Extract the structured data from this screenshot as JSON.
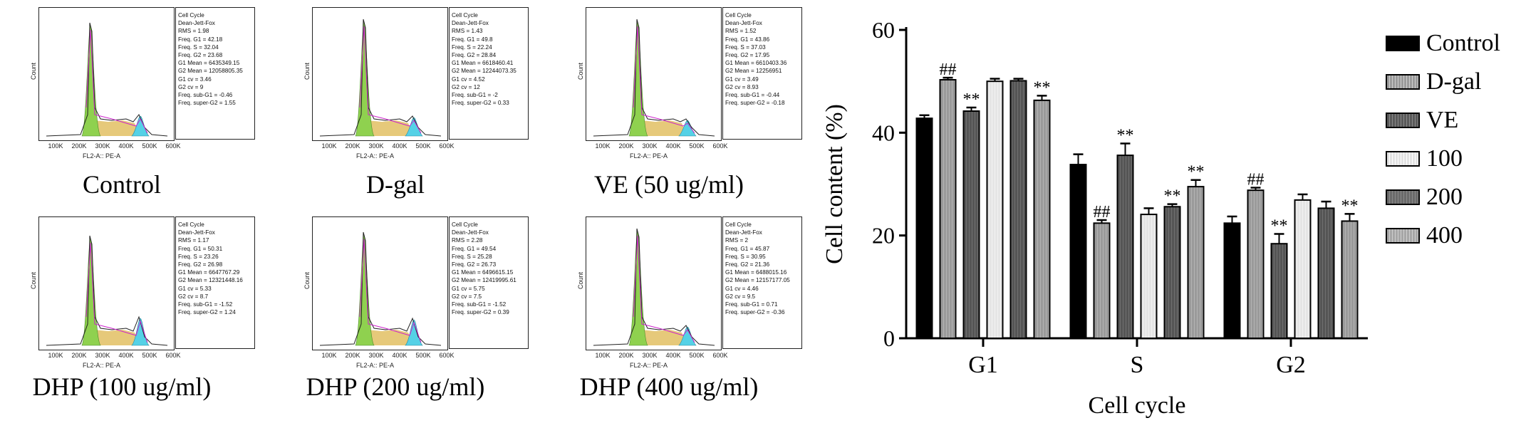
{
  "panels": [
    {
      "label": "Control",
      "stats": [
        "Cell Cycle",
        "Dean-Jett-Fox",
        "RMS = 1.98",
        "Freq. G1 = 42.18",
        "Freq. S = 32.04",
        "Freq. G2 = 23.68",
        "G1 Mean = 6435349.15",
        "G2 Mean = 12058805.35",
        "G1 cv = 3.46",
        "G2 cv = 9",
        "Freq. sub-G1 = -0.46",
        "Freq. super-G2 = 1.55"
      ]
    },
    {
      "label": "D-gal",
      "stats": [
        "Cell Cycle",
        "Dean-Jett-Fox",
        "RMS = 1.43",
        "Freq. G1 = 49.8",
        "Freq. S = 22.24",
        "Freq. G2 = 28.84",
        "G1 Mean = 6618460.41",
        "G2 Mean = 12244073.35",
        "G1 cv = 4.52",
        "G2 cv = 12",
        "Freq. sub-G1 = -2",
        "Freq. super-G2 = 0.33"
      ]
    },
    {
      "label": "VE (50 ug/ml)",
      "stats": [
        "Cell Cycle",
        "Dean-Jett-Fox",
        "RMS = 1.52",
        "Freq. G1 = 43.86",
        "Freq. S = 37.03",
        "Freq. G2 = 17.95",
        "G1 Mean = 6610403.36",
        "G2 Mean = 12256951",
        "G1 cv = 3.49",
        "G2 cv = 8.93",
        "Freq. sub-G1 = -0.44",
        "Freq. super-G2 = -0.18"
      ]
    },
    {
      "label": "DHP (100 ug/ml)",
      "stats": [
        "Cell Cycle",
        "Dean-Jett-Fox",
        "RMS = 1.17",
        "Freq. G1 = 50.31",
        "Freq. S = 23.26",
        "Freq. G2 = 26.98",
        "G1 Mean = 6647767.29",
        "G2 Mean = 12321448.16",
        "G1 cv = 5.33",
        "G2 cv = 8.7",
        "Freq. sub-G1 = -1.52",
        "Freq. super-G2 = 1.24"
      ]
    },
    {
      "label": "DHP (200 ug/ml)",
      "stats": [
        "Cell Cycle",
        "Dean-Jett-Fox",
        "RMS = 2.28",
        "Freq. G1 = 49.54",
        "Freq. S = 25.28",
        "Freq. G2 = 26.73",
        "G1 Mean = 6496615.15",
        "G2 Mean = 12419995.61",
        "G1 cv = 5.75",
        "G2 cv = 7.5",
        "Freq. sub-G1 = -1.52",
        "Freq. super-G2 = 0.39"
      ]
    },
    {
      "label": "DHP (400 ug/ml)",
      "stats": [
        "Cell Cycle",
        "Dean-Jett-Fox",
        "RMS = 2",
        "Freq. G1 = 45.87",
        "Freq. S = 30.95",
        "Freq. G2 = 21.36",
        "G1 Mean = 6488015.16",
        "G2 Mean = 12157177.05",
        "G1 cv = 4.46",
        "G2 cv = 9.5",
        "Freq. sub-G1 = 0.71",
        "Freq. super-G2 = -0.36"
      ]
    }
  ],
  "histogram": {
    "ylabel": "Count",
    "xlabel": "FL2-A:: PE-A",
    "xticks": [
      "100K",
      "200K",
      "300K",
      "400K",
      "500K",
      "600K"
    ]
  },
  "colors": {
    "g1_fill": "#8fd14f",
    "s_fill": "#e3c36b",
    "g2_fill": "#55d1e6",
    "fit_line": "#cc22cc",
    "outline": "#222222"
  },
  "chart_data": {
    "type": "bar",
    "categories": [
      "G1",
      "S",
      "G2"
    ],
    "xlabel": "Cell cycle",
    "ylabel": "Cell content (%)",
    "ylim": [
      0,
      60
    ],
    "yticks": [
      0,
      20,
      40,
      60
    ],
    "series": [
      {
        "name": "Control",
        "values": [
          42.8,
          33.8,
          22.4
        ],
        "errors": [
          0.6,
          2.0,
          1.3
        ],
        "color": "#000000",
        "style": "solid"
      },
      {
        "name": "D-gal",
        "values": [
          50.3,
          22.4,
          28.8
        ],
        "errors": [
          0.4,
          0.6,
          0.5
        ],
        "color": "#9a9a9a",
        "style": "hatch",
        "annotations": [
          "##",
          "##",
          "##"
        ]
      },
      {
        "name": "VE",
        "values": [
          44.2,
          35.6,
          18.4
        ],
        "errors": [
          0.7,
          2.3,
          1.9
        ],
        "color": "#595959",
        "style": "hatch-dark",
        "annotations": [
          "**",
          "**",
          "**"
        ]
      },
      {
        "name": "100",
        "values": [
          50.0,
          24.1,
          26.9
        ],
        "errors": [
          0.5,
          1.2,
          1.1
        ],
        "color": "#e2e2e2",
        "style": "hatch-light",
        "annotations": [
          "",
          "",
          ""
        ]
      },
      {
        "name": "200",
        "values": [
          50.1,
          25.6,
          25.3
        ],
        "errors": [
          0.4,
          0.5,
          1.3
        ],
        "color": "#6a6a6a",
        "style": "hatch-dark",
        "annotations": [
          "",
          "**",
          ""
        ]
      },
      {
        "name": "400",
        "values": [
          46.3,
          29.5,
          22.8
        ],
        "errors": [
          0.9,
          1.3,
          1.4
        ],
        "color": "#a6a6a6",
        "style": "hatch",
        "annotations": [
          "**",
          "**",
          "**"
        ]
      }
    ]
  }
}
